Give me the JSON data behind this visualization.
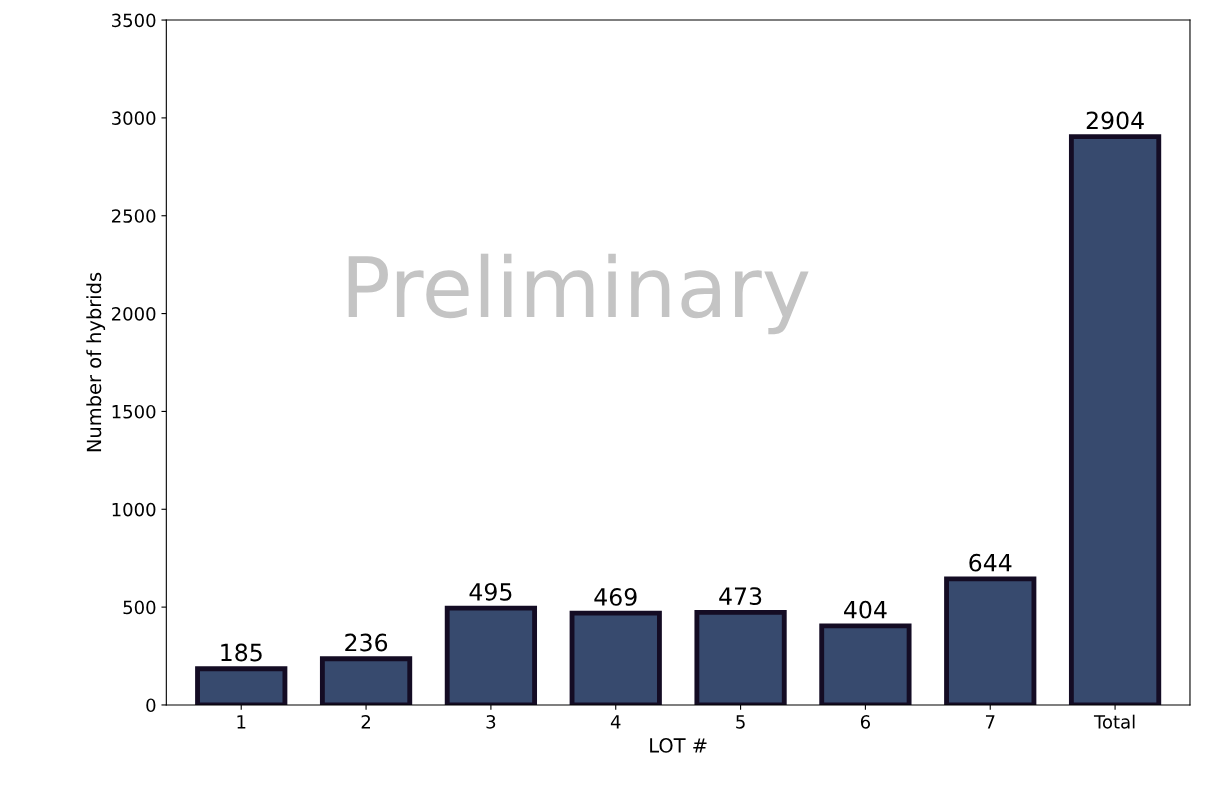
{
  "chart_data": {
    "type": "bar",
    "xlabel": "LOT #",
    "ylabel": "Number of hybrids",
    "categories": [
      "1",
      "2",
      "3",
      "4",
      "5",
      "6",
      "7",
      "Total"
    ],
    "values": [
      185,
      236,
      495,
      469,
      473,
      404,
      644,
      2904
    ],
    "color": "#374a6e",
    "ylim": [
      0,
      3500
    ],
    "yticks": [
      0,
      500,
      1000,
      1500,
      2000,
      2500,
      3000,
      3500
    ],
    "data_labels": true,
    "grid": false,
    "annotations": [
      "Preliminary"
    ]
  }
}
